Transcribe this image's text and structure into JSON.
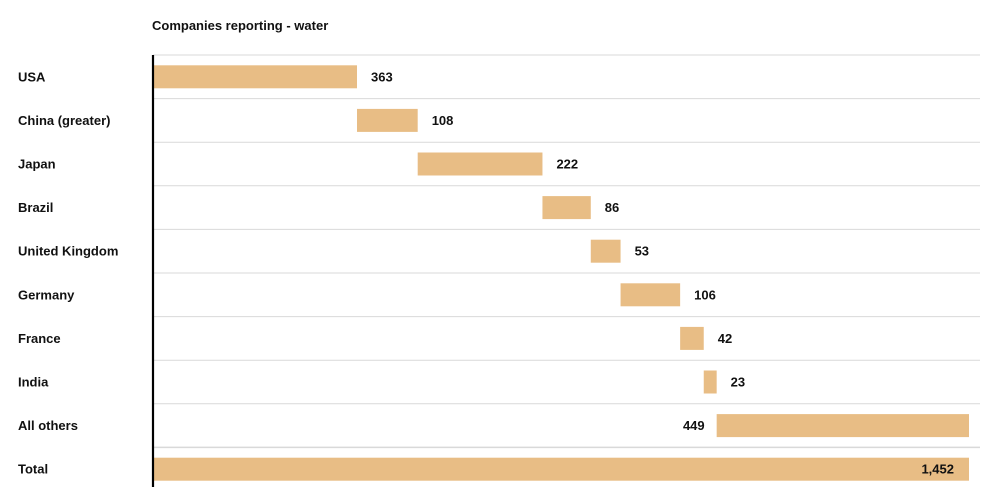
{
  "chart_data": {
    "type": "bar",
    "subtype": "waterfall",
    "orientation": "horizontal",
    "title": "Companies reporting - water",
    "categories": [
      "USA",
      "China (greater)",
      "Japan",
      "Brazil",
      "United Kingdom",
      "Germany",
      "France",
      "India",
      "All others",
      "Total"
    ],
    "values": [
      363,
      108,
      222,
      86,
      53,
      106,
      42,
      23,
      449,
      1452
    ],
    "value_labels": [
      "363",
      "108",
      "222",
      "86",
      "53",
      "106",
      "42",
      "23",
      "449",
      "1,452"
    ],
    "total_label": "Total",
    "xlim": [
      0,
      1452
    ],
    "grid": true,
    "bar_color": "#E8BD85",
    "grid_color": "#D9D9D9",
    "axis_color": "#000000"
  }
}
